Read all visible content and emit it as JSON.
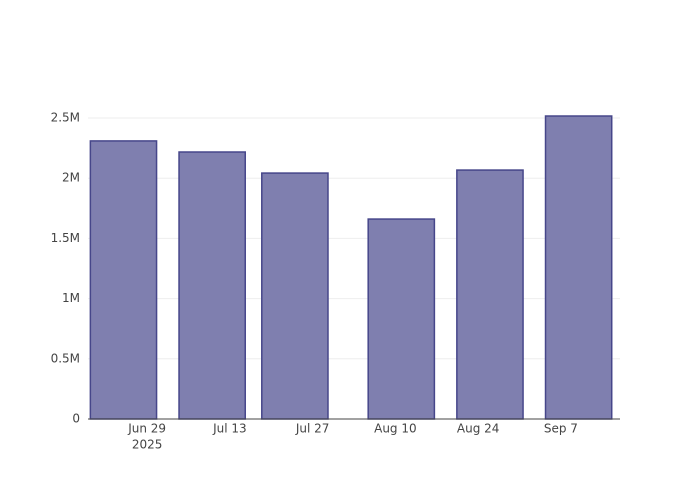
{
  "chart_data": {
    "type": "bar",
    "x": [
      "2025-06-25",
      "2025-07-10",
      "2025-07-24",
      "2025-08-11",
      "2025-08-26",
      "2025-09-10"
    ],
    "values": [
      2310000,
      2218000,
      2043000,
      1661000,
      2068000,
      2517000
    ],
    "color": "#7f7faf",
    "edge_color": "#46468a",
    "xlim": [
      "2025-06-19",
      "2025-09-17"
    ],
    "xticks": [
      {
        "value": "2025-06-29",
        "label": "Jun 29"
      },
      {
        "value": "2025-07-13",
        "label": "Jul 13"
      },
      {
        "value": "2025-07-27",
        "label": "Jul 27"
      },
      {
        "value": "2025-08-10",
        "label": "Aug 10"
      },
      {
        "value": "2025-08-24",
        "label": "Aug 24"
      },
      {
        "value": "2025-09-07",
        "label": "Sep 7"
      }
    ],
    "xtick_year": "2025",
    "ylim": [
      0,
      2650000
    ],
    "yticks": [
      0,
      {
        "value": 500000,
        "label": "0.5M"
      },
      {
        "value": 1000000,
        "label": "1M"
      },
      {
        "value": 1500000,
        "label": "1.5M"
      },
      {
        "value": 2000000,
        "label": "2M"
      },
      {
        "value": 2500000,
        "label": "2.5M"
      }
    ],
    "grid": true
  }
}
